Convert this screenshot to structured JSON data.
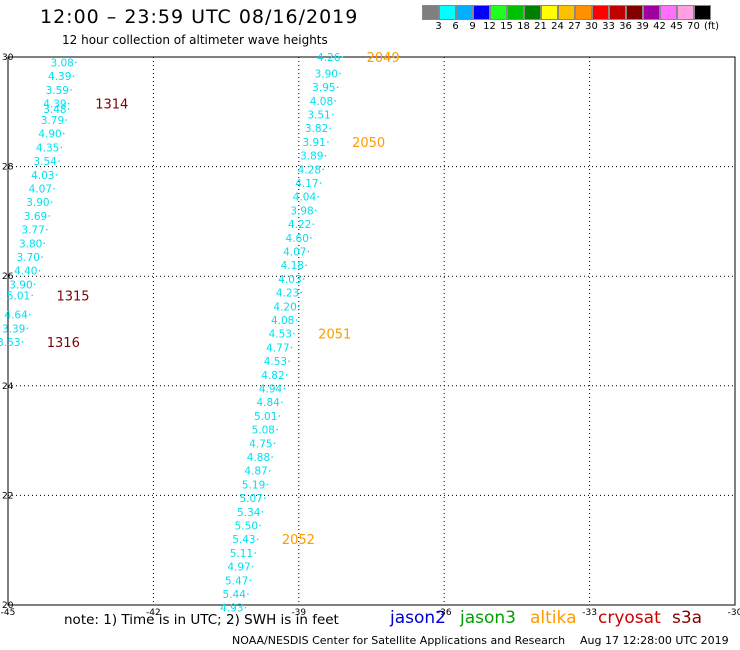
{
  "title": "12:00 – 23:59 UTC 08/16/2019",
  "subtitle": "12 hour collection of altimeter wave heights",
  "colorbar": {
    "swatches": [
      "#7f7f7f",
      "#00ffff",
      "#00b0ff",
      "#0000ff",
      "#20ff20",
      "#00c000",
      "#008000",
      "#ffff00",
      "#ffc000",
      "#ff9000",
      "#ff0000",
      "#c00000",
      "#800000",
      "#a000a0",
      "#ff70ff",
      "#ffa0e0",
      "#000000"
    ],
    "labels": [
      "3",
      "6",
      "9",
      "12",
      "15",
      "18",
      "21",
      "24",
      "27",
      "30",
      "33",
      "36",
      "39",
      "42",
      "45",
      "70"
    ],
    "unit": "(ft)"
  },
  "note": "note:  1) Time is in UTC;  2) SWH is in feet",
  "missions": [
    {
      "name": "jason2",
      "color": "#0000cc"
    },
    {
      "name": "jason3",
      "color": "#00a000"
    },
    {
      "name": "altika",
      "color": "#ff9900"
    },
    {
      "name": "cryosat",
      "color": "#cc0000"
    },
    {
      "name": "s3a",
      "color": "#800000"
    }
  ],
  "credit": "NOAA/NESDIS Center for Satellite Applications and Research",
  "timestamp": "Aug 17 12:28:00 UTC 2019",
  "chart_data": {
    "type": "scatter",
    "xlim": [
      -45,
      -30
    ],
    "ylim": [
      20,
      30
    ],
    "x_ticks": [
      "-45",
      "-42",
      "-39",
      "-36",
      "-33",
      "-30"
    ],
    "y_ticks": [
      "20",
      "22",
      "24",
      "26",
      "28",
      "30"
    ],
    "grid": "dotted",
    "value_color": "#00e0f0",
    "series": [
      {
        "name": "cryosat",
        "points": [
          {
            "x": -43.6,
            "y": 29.9,
            "v": "3.08"
          },
          {
            "x": -43.65,
            "y": 29.65,
            "v": "4.39"
          },
          {
            "x": -43.7,
            "y": 29.4,
            "v": "3.59"
          },
          {
            "x": -43.75,
            "y": 29.15,
            "v": "4.39"
          },
          {
            "x": -43.75,
            "y": 29.05,
            "v": "3.48"
          },
          {
            "x": -43.8,
            "y": 28.85,
            "v": "3.79"
          },
          {
            "x": -43.85,
            "y": 28.6,
            "v": "4.90"
          },
          {
            "x": -43.9,
            "y": 28.35,
            "v": "4.35"
          },
          {
            "x": -43.95,
            "y": 28.1,
            "v": "3.54"
          },
          {
            "x": -44.0,
            "y": 27.85,
            "v": "4.03"
          },
          {
            "x": -44.05,
            "y": 27.6,
            "v": "4.07"
          },
          {
            "x": -44.1,
            "y": 27.35,
            "v": "3.90"
          },
          {
            "x": -44.15,
            "y": 27.1,
            "v": "3.69"
          },
          {
            "x": -44.2,
            "y": 26.85,
            "v": "3.77"
          },
          {
            "x": -44.25,
            "y": 26.6,
            "v": "3.80"
          },
          {
            "x": -44.3,
            "y": 26.35,
            "v": "3.70"
          },
          {
            "x": -44.35,
            "y": 26.1,
            "v": "4.40"
          },
          {
            "x": -44.45,
            "y": 25.85,
            "v": "3.90"
          },
          {
            "x": -44.5,
            "y": 25.65,
            "v": "5.01"
          },
          {
            "x": -44.55,
            "y": 25.3,
            "v": "4.64"
          },
          {
            "x": -44.6,
            "y": 25.05,
            "v": "3.39"
          },
          {
            "x": -44.7,
            "y": 24.8,
            "v": "3.53"
          }
        ],
        "track_labels": [
          {
            "x": -43.2,
            "y": 29.15,
            "label": "1314",
            "color": "#800000"
          },
          {
            "x": -44.0,
            "y": 25.65,
            "label": "1315",
            "color": "#800000"
          },
          {
            "x": -44.2,
            "y": 24.8,
            "label": "1316",
            "color": "#800000"
          }
        ]
      },
      {
        "name": "altika",
        "points": [
          {
            "x": -38.1,
            "y": 30.0,
            "v": "4.26"
          },
          {
            "x": -38.15,
            "y": 29.7,
            "v": "3.90"
          },
          {
            "x": -38.2,
            "y": 29.45,
            "v": "3.95"
          },
          {
            "x": -38.25,
            "y": 29.2,
            "v": "4.08"
          },
          {
            "x": -38.3,
            "y": 28.95,
            "v": "3.51"
          },
          {
            "x": -38.35,
            "y": 28.7,
            "v": "3.82"
          },
          {
            "x": -38.4,
            "y": 28.45,
            "v": "3.91"
          },
          {
            "x": -38.45,
            "y": 28.2,
            "v": "3.89"
          },
          {
            "x": -38.5,
            "y": 27.95,
            "v": "4.28"
          },
          {
            "x": -38.55,
            "y": 27.7,
            "v": "4.17"
          },
          {
            "x": -38.6,
            "y": 27.45,
            "v": "4.04"
          },
          {
            "x": -38.65,
            "y": 27.2,
            "v": "3.98"
          },
          {
            "x": -38.7,
            "y": 26.95,
            "v": "4.22"
          },
          {
            "x": -38.75,
            "y": 26.7,
            "v": "4.60"
          },
          {
            "x": -38.8,
            "y": 26.45,
            "v": "4.07"
          },
          {
            "x": -38.85,
            "y": 26.2,
            "v": "4.18"
          },
          {
            "x": -38.9,
            "y": 25.95,
            "v": "4.03"
          },
          {
            "x": -38.95,
            "y": 25.7,
            "v": "4.23"
          },
          {
            "x": -39.0,
            "y": 25.45,
            "v": "4.20"
          },
          {
            "x": -39.05,
            "y": 25.2,
            "v": "4.08"
          },
          {
            "x": -39.1,
            "y": 24.95,
            "v": "4.53"
          },
          {
            "x": -39.15,
            "y": 24.7,
            "v": "4.77"
          },
          {
            "x": -39.2,
            "y": 24.45,
            "v": "4.53"
          },
          {
            "x": -39.25,
            "y": 24.2,
            "v": "4.82"
          },
          {
            "x": -39.3,
            "y": 23.95,
            "v": "4.94"
          },
          {
            "x": -39.35,
            "y": 23.7,
            "v": "4.84"
          },
          {
            "x": -39.4,
            "y": 23.45,
            "v": "5.01"
          },
          {
            "x": -39.45,
            "y": 23.2,
            "v": "5.08"
          },
          {
            "x": -39.5,
            "y": 22.95,
            "v": "4.75"
          },
          {
            "x": -39.55,
            "y": 22.7,
            "v": "4.88"
          },
          {
            "x": -39.6,
            "y": 22.45,
            "v": "4.87"
          },
          {
            "x": -39.65,
            "y": 22.2,
            "v": "5.19"
          },
          {
            "x": -39.7,
            "y": 21.95,
            "v": "5.07"
          },
          {
            "x": -39.75,
            "y": 21.7,
            "v": "5.34"
          },
          {
            "x": -39.8,
            "y": 21.45,
            "v": "5.50"
          },
          {
            "x": -39.85,
            "y": 21.2,
            "v": "5.43"
          },
          {
            "x": -39.9,
            "y": 20.95,
            "v": "5.11"
          },
          {
            "x": -39.95,
            "y": 20.7,
            "v": "4.97"
          },
          {
            "x": -40.0,
            "y": 20.45,
            "v": "5.47"
          },
          {
            "x": -40.05,
            "y": 20.2,
            "v": "5.44"
          },
          {
            "x": -40.1,
            "y": 19.95,
            "v": "4.93"
          }
        ],
        "track_labels": [
          {
            "x": -37.6,
            "y": 30.0,
            "label": "2049",
            "color": "#ff9900"
          },
          {
            "x": -37.9,
            "y": 28.45,
            "label": "2050",
            "color": "#ff9900"
          },
          {
            "x": -38.6,
            "y": 24.95,
            "label": "2051",
            "color": "#ff9900"
          },
          {
            "x": -39.35,
            "y": 21.2,
            "label": "2052",
            "color": "#ff9900"
          }
        ]
      }
    ]
  }
}
